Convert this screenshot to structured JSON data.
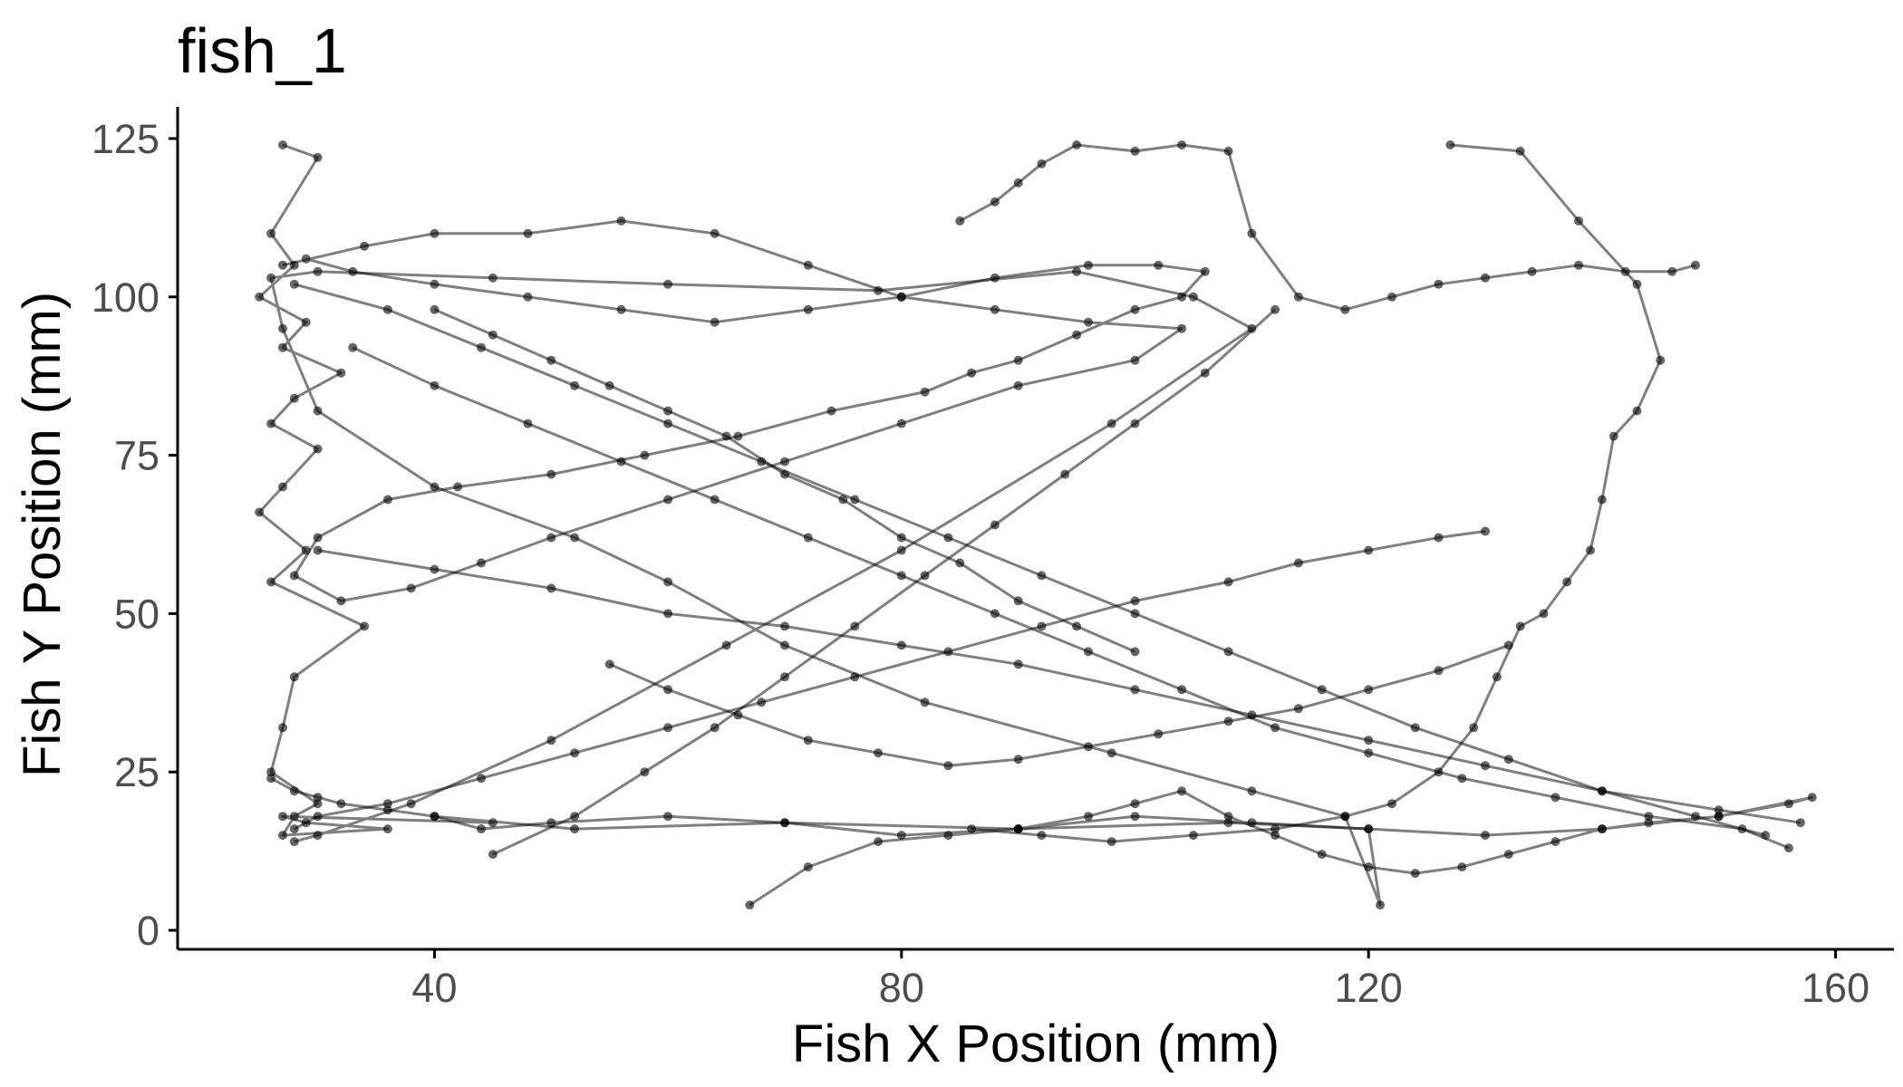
{
  "chart_data": {
    "type": "line",
    "title": "fish_1",
    "xlabel": "Fish X Position (mm)",
    "ylabel": "Fish Y Position (mm)",
    "xlim": [
      18,
      165
    ],
    "ylim": [
      -3,
      130
    ],
    "xticks": [
      40,
      80,
      120,
      160
    ],
    "yticks": [
      0,
      25,
      50,
      75,
      100,
      125
    ],
    "grid": false,
    "legend": "none",
    "line_color": "#000000",
    "point_color": "#000000",
    "series": [
      {
        "x": [
          27,
          30,
          26,
          28,
          25,
          29,
          27,
          32,
          28,
          26,
          30,
          27,
          25,
          29,
          26,
          34,
          28,
          27,
          26,
          30,
          28,
          27,
          36,
          29,
          27,
          45,
          40,
          52,
          70,
          90,
          108,
          120,
          121,
          118,
          110,
          98,
          82,
          70,
          60,
          52,
          40,
          30,
          27,
          26,
          30,
          45,
          60,
          78,
          95,
          105,
          110,
          98,
          80,
          65,
          50,
          38,
          30,
          28
        ],
        "y": [
          124,
          122,
          110,
          105,
          100,
          96,
          92,
          88,
          84,
          80,
          76,
          70,
          66,
          60,
          55,
          48,
          40,
          32,
          25,
          20,
          18,
          15,
          16,
          17,
          18,
          17,
          18,
          16,
          17,
          16,
          17,
          16,
          4,
          18,
          22,
          28,
          36,
          45,
          55,
          62,
          70,
          82,
          95,
          103,
          104,
          103,
          102,
          101,
          104,
          100,
          95,
          80,
          60,
          45,
          30,
          20,
          15,
          14
        ]
      },
      {
        "x": [
          27,
          34,
          40,
          48,
          56,
          64,
          72,
          80,
          88,
          96,
          104,
          100,
          90,
          80,
          70,
          60,
          50,
          44,
          38,
          32,
          28,
          30,
          36,
          42,
          50,
          58,
          66,
          74,
          82,
          86,
          90,
          95,
          100,
          104,
          106,
          102,
          96,
          88,
          80,
          72,
          64,
          56,
          48,
          40,
          33,
          29
        ],
        "y": [
          105,
          108,
          110,
          110,
          112,
          110,
          105,
          100,
          98,
          96,
          95,
          90,
          86,
          80,
          74,
          68,
          62,
          58,
          54,
          52,
          56,
          62,
          68,
          70,
          72,
          75,
          78,
          82,
          85,
          88,
          90,
          94,
          98,
          100,
          104,
          105,
          105,
          103,
          100,
          98,
          96,
          98,
          100,
          102,
          104,
          106
        ]
      },
      {
        "x": [
          67,
          72,
          78,
          84,
          90,
          96,
          100,
          104,
          108,
          112,
          116,
          120,
          124,
          128,
          132,
          136,
          140,
          144,
          150,
          156,
          158,
          150,
          140,
          130,
          120,
          110,
          100,
          90,
          80,
          70,
          60,
          50,
          44,
          40,
          36,
          32,
          30,
          28,
          26
        ],
        "y": [
          4,
          10,
          14,
          15,
          16,
          18,
          20,
          22,
          18,
          15,
          12,
          10,
          9,
          10,
          12,
          14,
          16,
          17,
          18,
          20,
          21,
          18,
          16,
          15,
          16,
          17,
          18,
          16,
          15,
          17,
          18,
          17,
          16,
          18,
          19,
          20,
          21,
          22,
          24
        ]
      },
      {
        "x": [
          85,
          88,
          90,
          92,
          95,
          100,
          104,
          108,
          110,
          114,
          118,
          122,
          126,
          130,
          134,
          138,
          142,
          146,
          148
        ],
        "y": [
          112,
          115,
          118,
          121,
          124,
          123,
          124,
          123,
          110,
          100,
          98,
          100,
          102,
          103,
          104,
          105,
          104,
          104,
          105
        ]
      },
      {
        "x": [
          127,
          133,
          138,
          143,
          145,
          143,
          141,
          140,
          139,
          137,
          135,
          133,
          131,
          129,
          126,
          122,
          118,
          112,
          105,
          98,
          92,
          86
        ],
        "y": [
          124,
          123,
          112,
          102,
          90,
          82,
          78,
          68,
          60,
          55,
          50,
          48,
          40,
          32,
          25,
          20,
          18,
          16,
          15,
          14,
          15,
          16
        ]
      },
      {
        "x": [
          30,
          40,
          50,
          60,
          70,
          80,
          90,
          100,
          110,
          120,
          130,
          140,
          150,
          157
        ],
        "y": [
          60,
          57,
          54,
          50,
          48,
          45,
          42,
          38,
          34,
          30,
          26,
          22,
          19,
          17
        ]
      },
      {
        "x": [
          33,
          40,
          48,
          56,
          64,
          72,
          80,
          88,
          96,
          104,
          112,
          120,
          128,
          136,
          144,
          152,
          156
        ],
        "y": [
          92,
          86,
          80,
          74,
          68,
          62,
          56,
          50,
          44,
          38,
          32,
          28,
          24,
          21,
          18,
          16,
          13
        ]
      },
      {
        "x": [
          28,
          36,
          44,
          52,
          60,
          68,
          76,
          84,
          92,
          100,
          108,
          116,
          124,
          132,
          140,
          148,
          154
        ],
        "y": [
          102,
          98,
          92,
          86,
          80,
          74,
          68,
          62,
          56,
          50,
          44,
          38,
          32,
          27,
          22,
          18,
          15
        ]
      },
      {
        "x": [
          130,
          126,
          120,
          114,
          108,
          100,
          92,
          84,
          76,
          68,
          60,
          52,
          44,
          36,
          30,
          28
        ],
        "y": [
          63,
          62,
          60,
          58,
          55,
          52,
          48,
          44,
          40,
          36,
          32,
          28,
          24,
          20,
          18,
          16
        ]
      },
      {
        "x": [
          55,
          60,
          66,
          72,
          78,
          84,
          90,
          96,
          102,
          108,
          114,
          120,
          126,
          132
        ],
        "y": [
          42,
          38,
          34,
          30,
          28,
          26,
          27,
          29,
          31,
          33,
          35,
          38,
          41,
          45
        ]
      },
      {
        "x": [
          45,
          52,
          58,
          64,
          70,
          76,
          82,
          88,
          94,
          100,
          106,
          112
        ],
        "y": [
          12,
          18,
          25,
          32,
          40,
          48,
          56,
          64,
          72,
          80,
          88,
          98
        ]
      },
      {
        "x": [
          100,
          95,
          90,
          85,
          80,
          75,
          70,
          65,
          60,
          55,
          50,
          45,
          40
        ],
        "y": [
          44,
          48,
          52,
          58,
          62,
          68,
          72,
          78,
          82,
          86,
          90,
          94,
          98
        ]
      }
    ]
  }
}
